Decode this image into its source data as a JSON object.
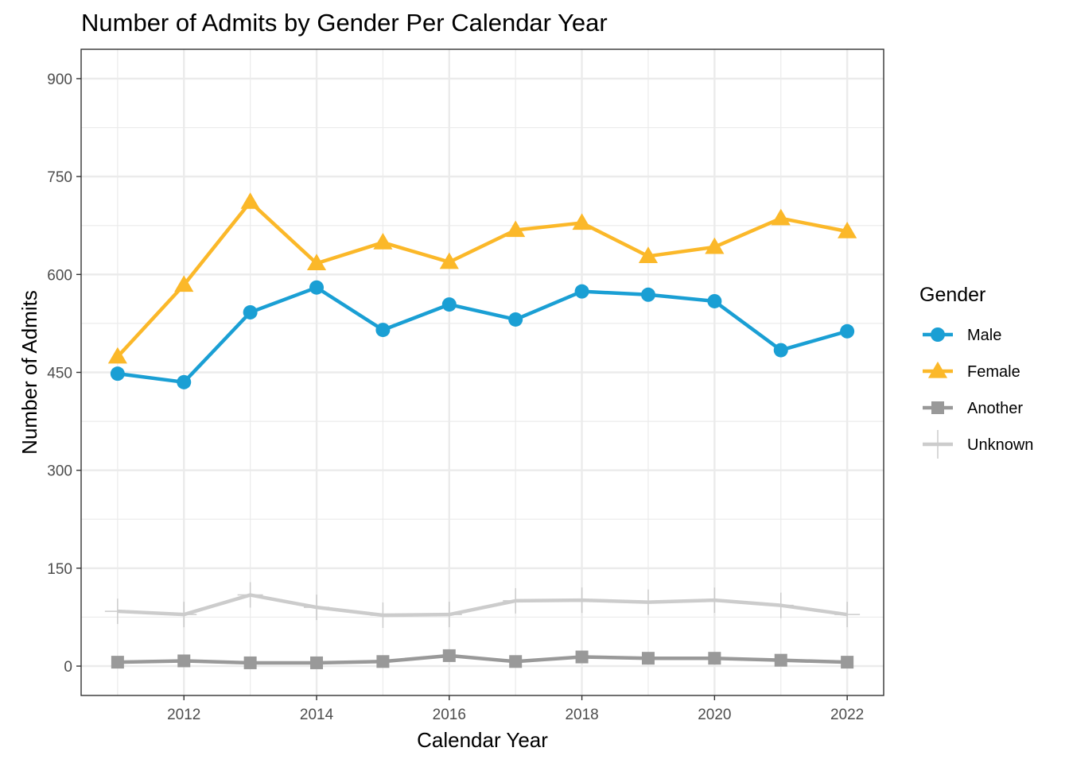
{
  "chart_data": {
    "type": "line",
    "title": "Number of Admits by Gender Per Calendar Year",
    "xlabel": "Calendar Year",
    "ylabel": "Number of Admits",
    "x": [
      2011,
      2012,
      2013,
      2014,
      2015,
      2016,
      2017,
      2018,
      2019,
      2020,
      2021,
      2022
    ],
    "xlim": [
      2010.45,
      2022.55
    ],
    "ylim": [
      -45,
      945
    ],
    "x_ticks": [
      "2012",
      "2014",
      "2016",
      "2018",
      "2020",
      "2022"
    ],
    "y_ticks": [
      "0",
      "150",
      "300",
      "450",
      "600",
      "750",
      "900"
    ],
    "grid": true,
    "legend": {
      "title": "Gender",
      "position": "right"
    },
    "series": [
      {
        "name": "Male",
        "color": "#1a9fd4",
        "marker": "circle",
        "values": [
          448,
          435,
          542,
          580,
          515,
          554,
          531,
          574,
          569,
          559,
          484,
          513
        ]
      },
      {
        "name": "Female",
        "color": "#fbb829",
        "marker": "triangle",
        "values": [
          474,
          584,
          711,
          617,
          649,
          619,
          668,
          679,
          628,
          642,
          686,
          666
        ]
      },
      {
        "name": "Another",
        "color": "#999999",
        "marker": "square",
        "values": [
          6,
          8,
          5,
          5,
          7,
          16,
          7,
          14,
          12,
          12,
          9,
          6
        ]
      },
      {
        "name": "Unknown",
        "color": "#cccccc",
        "marker": "plus",
        "values": [
          84,
          79,
          109,
          90,
          78,
          79,
          100,
          101,
          98,
          101,
          93,
          79
        ]
      }
    ]
  }
}
